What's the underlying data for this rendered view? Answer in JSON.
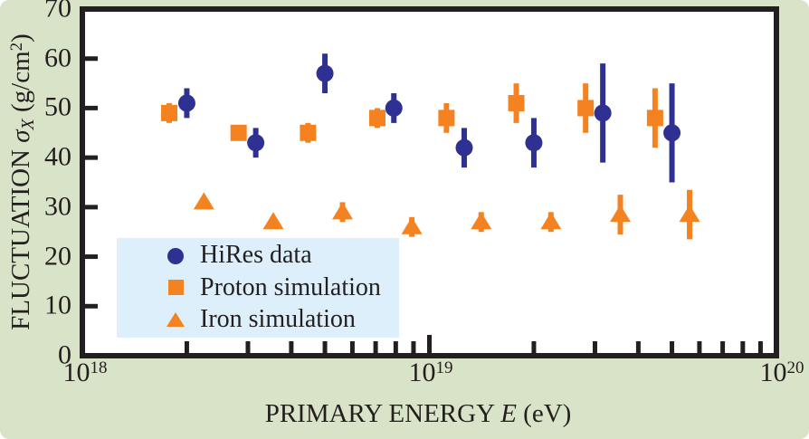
{
  "chart_data": {
    "type": "scatter",
    "title": "",
    "xlabel": "PRIMARY ENERGY E (eV)",
    "ylabel": "FLUCTUATION σX (g/cm2)",
    "xlabel_parts": {
      "pre": "PRIMARY ENERGY ",
      "var": "E",
      "unit": " (eV)"
    },
    "ylabel_parts": {
      "pre": "FLUCTUATION ",
      "sigma": "σ",
      "sub": "X",
      "unit_open": " (g/cm",
      "sup": "2",
      "unit_close": ")"
    },
    "x_scale": "log",
    "x_log_range": [
      18,
      20
    ],
    "x_major_ticks_log": [
      18,
      19,
      20
    ],
    "x_tick_labels": [
      {
        "base": "10",
        "exp": "18"
      },
      {
        "base": "10",
        "exp": "19"
      },
      {
        "base": "10",
        "exp": "20"
      }
    ],
    "y_range": [
      0,
      70
    ],
    "y_ticks": [
      0,
      10,
      20,
      30,
      40,
      50,
      60,
      70
    ],
    "grid": false,
    "legend_position": "lower-left",
    "colors": {
      "background": "#d9e3c8",
      "plot_background": "#ffffff",
      "frame": "#231f20",
      "hires_blue": "#2e3192",
      "simulation_orange": "#f58220",
      "legend_background": "#ddeffa"
    },
    "series": [
      {
        "name": "HiRes data",
        "marker": "circle",
        "color": "#2e3192",
        "points": [
          {
            "E_eV": 2e+18,
            "y": 51,
            "err": 3
          },
          {
            "E_eV": 3.16e+18,
            "y": 43,
            "err": 3
          },
          {
            "E_eV": 5e+18,
            "y": 57,
            "err": 4
          },
          {
            "E_eV": 7.9e+18,
            "y": 50,
            "err": 3
          },
          {
            "E_eV": 1.26e+19,
            "y": 42,
            "err": 4
          },
          {
            "E_eV": 2e+19,
            "y": 43,
            "err": 5
          },
          {
            "E_eV": 3.16e+19,
            "y": 49,
            "err": 10
          },
          {
            "E_eV": 5e+19,
            "y": 45,
            "err": 10
          }
        ]
      },
      {
        "name": "Proton simulation",
        "marker": "square",
        "color": "#f58220",
        "points": [
          {
            "E_eV": 1.78e+18,
            "y": 49,
            "err": 2
          },
          {
            "E_eV": 2.82e+18,
            "y": 45,
            "err": 1
          },
          {
            "E_eV": 4.47e+18,
            "y": 45,
            "err": 2
          },
          {
            "E_eV": 7.08e+18,
            "y": 48,
            "err": 2
          },
          {
            "E_eV": 1.12e+19,
            "y": 48,
            "err": 3
          },
          {
            "E_eV": 1.78e+19,
            "y": 51,
            "err": 4
          },
          {
            "E_eV": 2.82e+19,
            "y": 50,
            "err": 5
          },
          {
            "E_eV": 4.47e+19,
            "y": 48,
            "err": 6
          }
        ]
      },
      {
        "name": "Iron simulation",
        "marker": "triangle",
        "color": "#f58220",
        "points": [
          {
            "E_eV": 2.24e+18,
            "y": 31,
            "err": 0
          },
          {
            "E_eV": 3.55e+18,
            "y": 27,
            "err": 0
          },
          {
            "E_eV": 5.62e+18,
            "y": 29,
            "err": 2
          },
          {
            "E_eV": 8.9e+18,
            "y": 26,
            "err": 2
          },
          {
            "E_eV": 1.41e+19,
            "y": 27,
            "err": 2
          },
          {
            "E_eV": 2.24e+19,
            "y": 27,
            "err": 2
          },
          {
            "E_eV": 3.55e+19,
            "y": 28.5,
            "err": 4
          },
          {
            "E_eV": 5.62e+19,
            "y": 28.5,
            "err": 5
          }
        ]
      }
    ]
  }
}
